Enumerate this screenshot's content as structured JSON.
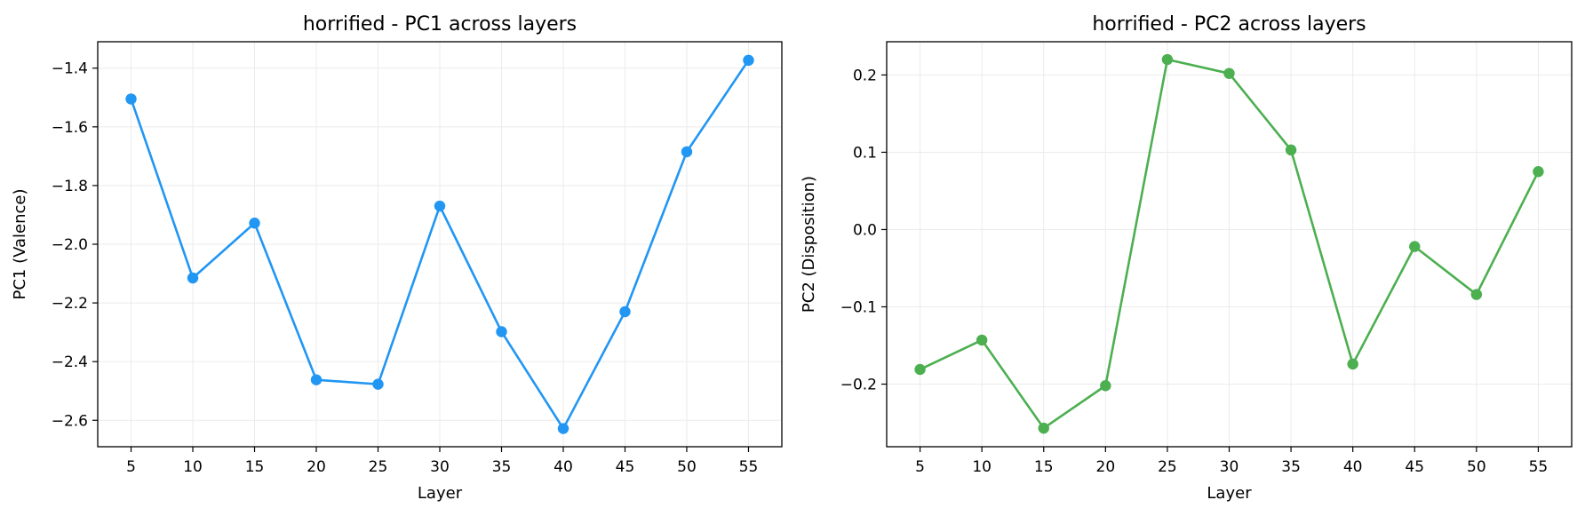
{
  "chart_data": [
    {
      "type": "line",
      "title": "horrified - PC1 across layers",
      "xlabel": "Layer",
      "ylabel": "PC1 (Valence)",
      "x": [
        5,
        10,
        15,
        20,
        25,
        30,
        35,
        40,
        45,
        50,
        55
      ],
      "series": [
        {
          "values": [
            -1.505,
            -2.115,
            -1.928,
            -2.462,
            -2.477,
            -1.87,
            -2.298,
            -2.628,
            -2.23,
            -1.685,
            -1.373
          ]
        }
      ],
      "color": "#2196F3",
      "xlim": [
        2.3,
        57.7
      ],
      "ylim": [
        -2.69,
        -1.31
      ],
      "xticks": [
        5,
        10,
        15,
        20,
        25,
        30,
        35,
        40,
        45,
        50,
        55
      ],
      "yticks": [
        -2.6,
        -2.4,
        -2.2,
        -2.0,
        -1.8,
        -1.6,
        -1.4
      ],
      "ytick_labels": [
        "−2.6",
        "−2.4",
        "−2.2",
        "−2.0",
        "−1.8",
        "−1.6",
        "−1.4"
      ],
      "grid": true
    },
    {
      "type": "line",
      "title": "horrified - PC2 across layers",
      "xlabel": "Layer",
      "ylabel": "PC2 (Disposition)",
      "x": [
        5,
        10,
        15,
        20,
        25,
        30,
        35,
        40,
        45,
        50,
        55
      ],
      "series": [
        {
          "values": [
            -0.181,
            -0.143,
            -0.257,
            -0.202,
            0.22,
            0.202,
            0.103,
            -0.174,
            -0.022,
            -0.084,
            0.075
          ]
        }
      ],
      "color": "#4CAF50",
      "xlim": [
        2.3,
        57.7
      ],
      "ylim": [
        -0.281,
        0.243
      ],
      "xticks": [
        5,
        10,
        15,
        20,
        25,
        30,
        35,
        40,
        45,
        50,
        55
      ],
      "yticks": [
        -0.2,
        -0.1,
        0.0,
        0.1,
        0.2
      ],
      "ytick_labels": [
        "−0.2",
        "−0.1",
        "0.0",
        "0.1",
        "0.2"
      ],
      "grid": true
    }
  ]
}
